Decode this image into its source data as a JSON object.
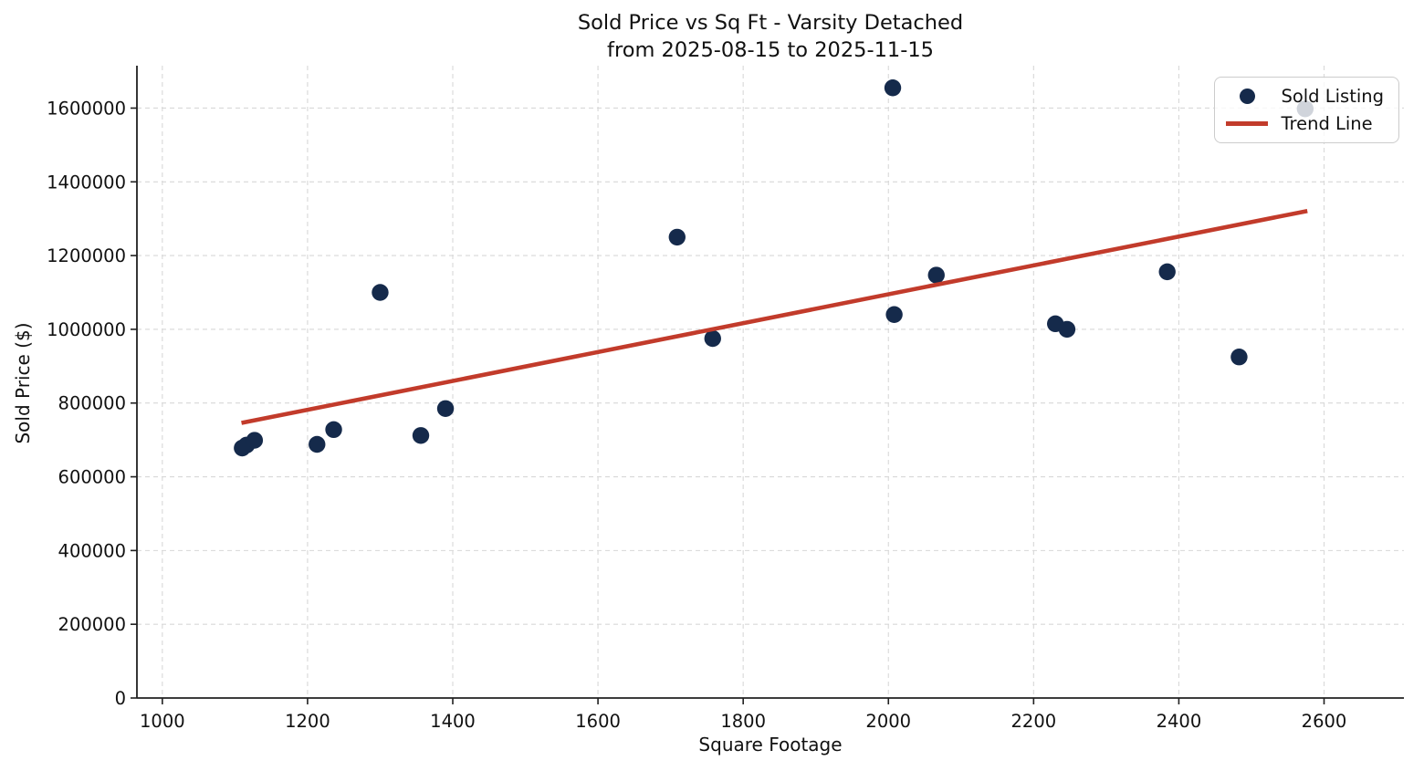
{
  "chart_data": {
    "type": "scatter",
    "title_line1": "Sold Price vs Sq Ft - Varsity Detached",
    "title_line2": "from 2025-08-15 to 2025-11-15",
    "xlabel": "Square Footage",
    "ylabel": "Sold Price ($)",
    "xlim": [
      965,
      2710
    ],
    "ylim": [
      0,
      1715000
    ],
    "xticks": [
      1000,
      1200,
      1400,
      1600,
      1800,
      2000,
      2200,
      2400,
      2600
    ],
    "yticks": [
      0,
      200000,
      400000,
      600000,
      800000,
      1000000,
      1200000,
      1400000,
      1600000
    ],
    "grid": true,
    "legend_position": "upper right",
    "series": [
      {
        "name": "Sold Listing",
        "type": "scatter",
        "color": "#152a4b",
        "points": [
          [
            1110,
            678000
          ],
          [
            1116,
            686000
          ],
          [
            1127,
            699000
          ],
          [
            1213,
            688000
          ],
          [
            1236,
            728000
          ],
          [
            1300,
            1100000
          ],
          [
            1356,
            712000
          ],
          [
            1390,
            785000
          ],
          [
            1709,
            1250000
          ],
          [
            1758,
            975000
          ],
          [
            2006,
            1655000
          ],
          [
            2008,
            1040000
          ],
          [
            2066,
            1147000
          ],
          [
            2230,
            1015000
          ],
          [
            2246,
            1000000
          ],
          [
            2384,
            1156000
          ],
          [
            2483,
            925000
          ],
          [
            2574,
            1598000
          ]
        ]
      },
      {
        "name": "Trend Line",
        "type": "line",
        "color": "#c23b2b",
        "points": [
          [
            1109,
            746000
          ],
          [
            2577,
            1321000
          ]
        ]
      }
    ],
    "legend": {
      "items": [
        {
          "label": "Sold Listing",
          "marker": "circle",
          "color": "#152a4b"
        },
        {
          "label": "Trend Line",
          "marker": "line",
          "color": "#c23b2b"
        }
      ]
    }
  },
  "colors": {
    "background": "#ffffff",
    "grid": "#d8d8d8",
    "axis": "#202020",
    "text": "#111111",
    "legend_border": "#cccccc",
    "point": "#152a4b",
    "trend": "#c23b2b"
  }
}
